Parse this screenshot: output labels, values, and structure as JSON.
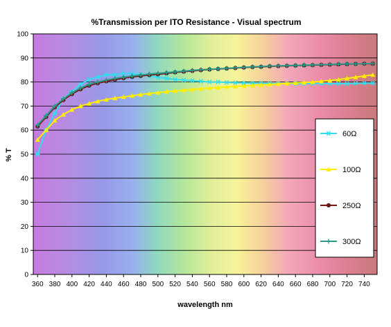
{
  "chart_data": {
    "type": "line",
    "title": "%Transmission per ITO Resistance -  Visual spectrum",
    "xlabel": "wavelength nm",
    "ylabel": "% T",
    "xlim": [
      355,
      755
    ],
    "ylim": [
      0,
      100
    ],
    "x_ticks": [
      360,
      380,
      400,
      420,
      440,
      460,
      480,
      500,
      520,
      540,
      560,
      580,
      600,
      620,
      640,
      660,
      680,
      700,
      720,
      740
    ],
    "y_ticks": [
      0,
      10,
      20,
      30,
      40,
      50,
      60,
      70,
      80,
      90,
      100
    ],
    "grid": true,
    "legend_position": "right",
    "x": [
      360,
      370,
      380,
      390,
      400,
      410,
      420,
      430,
      440,
      450,
      460,
      470,
      480,
      490,
      500,
      510,
      520,
      530,
      540,
      550,
      560,
      570,
      580,
      590,
      600,
      610,
      620,
      630,
      640,
      650,
      660,
      670,
      680,
      690,
      700,
      710,
      720,
      730,
      740,
      750
    ],
    "series": [
      {
        "name": "60Ω",
        "color": "#33ddee",
        "marker": "asterisk",
        "values": [
          50,
          60,
          67,
          73,
          76,
          79,
          81,
          82,
          83,
          83,
          83.5,
          83.5,
          83,
          82.5,
          82,
          81.5,
          81,
          80.8,
          80.5,
          80.3,
          80,
          80,
          79.8,
          79.7,
          79.6,
          79.5,
          79.5,
          79.4,
          79.4,
          79.3,
          79.3,
          79.3,
          79.3,
          79.3,
          79.3,
          79.3,
          79.3,
          79.4,
          79.5,
          79.5
        ]
      },
      {
        "name": "100Ω",
        "color": "#ffee00",
        "marker": "triangle",
        "values": [
          56,
          60,
          64,
          66.5,
          68.5,
          70,
          71,
          72,
          72.7,
          73.3,
          73.8,
          74.3,
          74.8,
          75.2,
          75.6,
          76,
          76.3,
          76.6,
          76.9,
          77.2,
          77.5,
          77.7,
          78,
          78.2,
          78.4,
          78.6,
          78.8,
          79,
          79.2,
          79.4,
          79.6,
          79.8,
          80,
          80.3,
          80.6,
          81,
          81.5,
          82,
          82.5,
          83
        ]
      },
      {
        "name": "250Ω",
        "color": "#7a1010",
        "marker": "circle",
        "values": [
          61.5,
          65.5,
          69.5,
          72.5,
          75,
          77,
          78.5,
          79.5,
          80.3,
          81,
          81.6,
          82.1,
          82.5,
          82.9,
          83.2,
          83.6,
          84,
          84.3,
          84.6,
          84.9,
          85.2,
          85.4,
          85.6,
          85.8,
          86,
          86.2,
          86.3,
          86.5,
          86.6,
          86.7,
          86.8,
          86.9,
          87,
          87.1,
          87.2,
          87.3,
          87.4,
          87.5,
          87.6,
          87.6
        ]
      },
      {
        "name": "300Ω",
        "color": "#2a9a8a",
        "marker": "plus",
        "values": [
          62,
          66,
          70,
          73,
          75.5,
          77.5,
          79,
          80,
          80.8,
          81.5,
          82,
          82.5,
          82.9,
          83.3,
          83.6,
          83.9,
          84.2,
          84.5,
          84.8,
          85.1,
          85.3,
          85.5,
          85.7,
          85.9,
          86.1,
          86.3,
          86.4,
          86.6,
          86.7,
          86.8,
          86.9,
          87,
          87.1,
          87.2,
          87.3,
          87.4,
          87.5,
          87.5,
          87.6,
          87.7
        ]
      }
    ]
  }
}
